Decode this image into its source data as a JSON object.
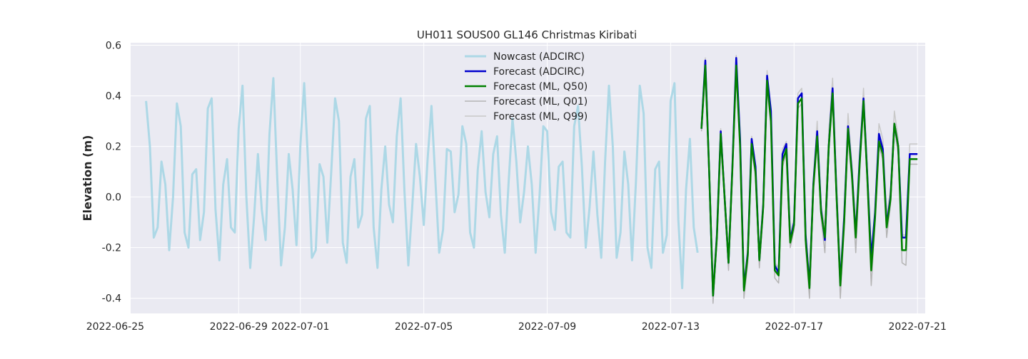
{
  "chart_data": {
    "type": "line",
    "title": "UH011 SOUS00 GL146 Christmas Kiribati",
    "xlabel": "",
    "ylabel": "Elevation (m)",
    "x_axis_type": "date",
    "xlim": [
      "2022-06-25T12:00",
      "2022-07-21T06:00"
    ],
    "ylim": [
      -0.46,
      0.61
    ],
    "x_tick_labels": [
      "2022-06-25",
      "2022-06-29",
      "2022-07-01",
      "2022-07-05",
      "2022-07-09",
      "2022-07-13",
      "2022-07-17",
      "2022-07-21"
    ],
    "y_ticks": [
      -0.4,
      -0.2,
      0.0,
      0.2,
      0.4,
      0.6
    ],
    "y_tick_labels": [
      "-0.4",
      "-0.2",
      "0.0",
      "0.2",
      "0.4",
      "0.6"
    ],
    "grid": true,
    "legend_position": "top-center",
    "background_color": "#eaeaf2",
    "series": [
      {
        "name": "Nowcast (ADCIRC)",
        "color": "#add8e6",
        "x": [
          "2022-06-26T00:00",
          "2022-06-26T03:00",
          "2022-06-26T06:00",
          "2022-06-26T09:00",
          "2022-06-26T12:00",
          "2022-06-26T15:00",
          "2022-06-26T18:00",
          "2022-06-26T21:00",
          "2022-06-27T00:00",
          "2022-06-27T03:00",
          "2022-06-27T06:00",
          "2022-06-27T09:00",
          "2022-06-27T12:00",
          "2022-06-27T15:00",
          "2022-06-27T18:00",
          "2022-06-27T21:00",
          "2022-06-28T00:00",
          "2022-06-28T03:00",
          "2022-06-28T06:00",
          "2022-06-28T09:00",
          "2022-06-28T12:00",
          "2022-06-28T15:00",
          "2022-06-28T18:00",
          "2022-06-28T21:00",
          "2022-06-29T00:00",
          "2022-06-29T03:00",
          "2022-06-29T06:00",
          "2022-06-29T09:00",
          "2022-06-29T12:00",
          "2022-06-29T15:00",
          "2022-06-29T18:00",
          "2022-06-29T21:00",
          "2022-06-30T00:00",
          "2022-06-30T03:00",
          "2022-06-30T06:00",
          "2022-06-30T09:00",
          "2022-06-30T12:00",
          "2022-06-30T15:00",
          "2022-06-30T18:00",
          "2022-06-30T21:00",
          "2022-07-01T00:00",
          "2022-07-01T03:00",
          "2022-07-01T06:00",
          "2022-07-01T09:00",
          "2022-07-01T12:00",
          "2022-07-01T15:00",
          "2022-07-01T18:00",
          "2022-07-01T21:00",
          "2022-07-02T00:00",
          "2022-07-02T03:00",
          "2022-07-02T06:00",
          "2022-07-02T09:00",
          "2022-07-02T12:00",
          "2022-07-02T15:00",
          "2022-07-02T18:00",
          "2022-07-02T21:00",
          "2022-07-03T00:00",
          "2022-07-03T03:00",
          "2022-07-03T06:00",
          "2022-07-03T09:00",
          "2022-07-03T12:00",
          "2022-07-03T15:00",
          "2022-07-03T18:00",
          "2022-07-03T21:00",
          "2022-07-04T00:00",
          "2022-07-04T03:00",
          "2022-07-04T06:00",
          "2022-07-04T09:00",
          "2022-07-04T12:00",
          "2022-07-04T15:00",
          "2022-07-04T18:00",
          "2022-07-04T21:00",
          "2022-07-05T00:00",
          "2022-07-05T03:00",
          "2022-07-05T06:00",
          "2022-07-05T09:00",
          "2022-07-05T12:00",
          "2022-07-05T15:00",
          "2022-07-05T18:00",
          "2022-07-05T21:00",
          "2022-07-06T00:00",
          "2022-07-06T03:00",
          "2022-07-06T06:00",
          "2022-07-06T09:00",
          "2022-07-06T12:00",
          "2022-07-06T15:00",
          "2022-07-06T18:00",
          "2022-07-06T21:00",
          "2022-07-07T00:00",
          "2022-07-07T03:00",
          "2022-07-07T06:00",
          "2022-07-07T09:00",
          "2022-07-07T12:00",
          "2022-07-07T15:00",
          "2022-07-07T18:00",
          "2022-07-07T21:00",
          "2022-07-08T00:00",
          "2022-07-08T03:00",
          "2022-07-08T06:00",
          "2022-07-08T09:00",
          "2022-07-08T12:00",
          "2022-07-08T15:00",
          "2022-07-08T18:00",
          "2022-07-08T21:00",
          "2022-07-09T00:00",
          "2022-07-09T03:00",
          "2022-07-09T06:00",
          "2022-07-09T09:00",
          "2022-07-09T12:00",
          "2022-07-09T15:00",
          "2022-07-09T18:00",
          "2022-07-09T21:00",
          "2022-07-10T00:00",
          "2022-07-10T03:00",
          "2022-07-10T06:00",
          "2022-07-10T09:00",
          "2022-07-10T12:00",
          "2022-07-10T15:00",
          "2022-07-10T18:00",
          "2022-07-10T21:00",
          "2022-07-11T00:00",
          "2022-07-11T03:00",
          "2022-07-11T06:00",
          "2022-07-11T09:00",
          "2022-07-11T12:00",
          "2022-07-11T15:00",
          "2022-07-11T18:00",
          "2022-07-11T21:00",
          "2022-07-12T00:00",
          "2022-07-12T03:00",
          "2022-07-12T06:00",
          "2022-07-12T09:00",
          "2022-07-12T12:00",
          "2022-07-12T15:00",
          "2022-07-12T18:00",
          "2022-07-12T21:00",
          "2022-07-13T00:00",
          "2022-07-13T03:00",
          "2022-07-13T06:00",
          "2022-07-13T09:00",
          "2022-07-13T12:00",
          "2022-07-13T15:00",
          "2022-07-13T18:00",
          "2022-07-13T21:00"
        ],
        "y": [
          0.38,
          0.2,
          -0.16,
          -0.12,
          0.14,
          0.05,
          -0.21,
          0.0,
          0.37,
          0.28,
          -0.14,
          -0.2,
          0.09,
          0.11,
          -0.17,
          -0.06,
          0.35,
          0.39,
          -0.05,
          -0.25,
          0.05,
          0.15,
          -0.12,
          -0.14,
          0.27,
          0.44,
          0.0,
          -0.28,
          -0.08,
          0.17,
          -0.05,
          -0.17,
          0.25,
          0.47,
          0.08,
          -0.27,
          -0.12,
          0.17,
          0.03,
          -0.19,
          0.2,
          0.45,
          0.14,
          -0.24,
          -0.21,
          0.13,
          0.08,
          -0.18,
          0.1,
          0.39,
          0.3,
          -0.18,
          -0.26,
          0.08,
          0.15,
          -0.12,
          -0.07,
          0.31,
          0.36,
          -0.12,
          -0.28,
          0.03,
          0.2,
          -0.03,
          -0.1,
          0.24,
          0.39,
          0.02,
          -0.27,
          -0.04,
          0.21,
          0.08,
          -0.11,
          0.15,
          0.36,
          0.07,
          -0.22,
          -0.13,
          0.19,
          0.18,
          -0.06,
          0.01,
          0.28,
          0.21,
          -0.14,
          -0.2,
          0.11,
          0.26,
          0.02,
          -0.08,
          0.17,
          0.24,
          -0.07,
          -0.22,
          0.06,
          0.31,
          0.14,
          -0.1,
          0.02,
          0.2,
          0.05,
          -0.22,
          0.0,
          0.28,
          0.26,
          -0.06,
          -0.13,
          0.12,
          0.14,
          -0.14,
          -0.16,
          0.28,
          0.36,
          0.12,
          -0.2,
          -0.04,
          0.18,
          -0.07,
          -0.24,
          0.14,
          0.44,
          0.2,
          -0.24,
          -0.14,
          0.18,
          0.05,
          -0.25,
          0.06,
          0.44,
          0.33,
          -0.2,
          -0.28,
          0.11,
          0.14,
          -0.22,
          -0.15,
          0.38,
          0.45,
          -0.09,
          -0.36,
          0.03,
          0.23,
          -0.12,
          -0.22
        ]
      },
      {
        "name": "Forecast (ADCIRC)",
        "color": "#0000cd",
        "x": [
          "2022-07-14T00:00",
          "2022-07-14T03:00",
          "2022-07-14T06:00",
          "2022-07-14T09:00",
          "2022-07-14T12:00",
          "2022-07-14T15:00",
          "2022-07-14T18:00",
          "2022-07-14T21:00",
          "2022-07-15T00:00",
          "2022-07-15T03:00",
          "2022-07-15T06:00",
          "2022-07-15T09:00",
          "2022-07-15T12:00",
          "2022-07-15T15:00",
          "2022-07-15T18:00",
          "2022-07-15T21:00",
          "2022-07-16T00:00",
          "2022-07-16T03:00",
          "2022-07-16T06:00",
          "2022-07-16T09:00",
          "2022-07-16T12:00",
          "2022-07-16T15:00",
          "2022-07-16T18:00",
          "2022-07-16T21:00",
          "2022-07-17T00:00",
          "2022-07-17T03:00",
          "2022-07-17T06:00",
          "2022-07-17T09:00",
          "2022-07-17T12:00",
          "2022-07-17T15:00",
          "2022-07-17T18:00",
          "2022-07-17T21:00",
          "2022-07-18T00:00",
          "2022-07-18T03:00",
          "2022-07-18T06:00",
          "2022-07-18T09:00",
          "2022-07-18T12:00",
          "2022-07-18T15:00",
          "2022-07-18T18:00",
          "2022-07-18T21:00",
          "2022-07-19T00:00",
          "2022-07-19T03:00",
          "2022-07-19T06:00",
          "2022-07-19T09:00",
          "2022-07-19T12:00",
          "2022-07-19T15:00",
          "2022-07-19T18:00",
          "2022-07-19T21:00",
          "2022-07-20T00:00",
          "2022-07-20T03:00",
          "2022-07-20T06:00",
          "2022-07-20T09:00",
          "2022-07-20T12:00",
          "2022-07-20T15:00",
          "2022-07-20T18:00",
          "2022-07-20T21:00",
          "2022-07-21T00:00"
        ],
        "y": [
          0.27,
          0.54,
          0.1,
          -0.39,
          -0.15,
          0.26,
          0.0,
          -0.26,
          0.12,
          0.55,
          0.23,
          -0.36,
          -0.22,
          0.23,
          0.12,
          -0.25,
          -0.03,
          0.48,
          0.34,
          -0.27,
          -0.3,
          0.17,
          0.21,
          -0.17,
          -0.1,
          0.39,
          0.41,
          -0.15,
          -0.35,
          0.05,
          0.26,
          -0.05,
          -0.17,
          0.2,
          0.43,
          0.02,
          -0.34,
          -0.08,
          0.28,
          0.1,
          -0.15,
          0.15,
          0.39,
          0.08,
          -0.24,
          -0.06,
          0.25,
          0.19,
          -0.11,
          0.0,
          0.29,
          0.2,
          -0.16,
          -0.16,
          0.17,
          0.17,
          0.17
        ]
      },
      {
        "name": "Forecast (ML, Q50)",
        "color": "#008000",
        "x": [
          "2022-07-14T00:00",
          "2022-07-14T03:00",
          "2022-07-14T06:00",
          "2022-07-14T09:00",
          "2022-07-14T12:00",
          "2022-07-14T15:00",
          "2022-07-14T18:00",
          "2022-07-14T21:00",
          "2022-07-15T00:00",
          "2022-07-15T03:00",
          "2022-07-15T06:00",
          "2022-07-15T09:00",
          "2022-07-15T12:00",
          "2022-07-15T15:00",
          "2022-07-15T18:00",
          "2022-07-15T21:00",
          "2022-07-16T00:00",
          "2022-07-16T03:00",
          "2022-07-16T06:00",
          "2022-07-16T09:00",
          "2022-07-16T12:00",
          "2022-07-16T15:00",
          "2022-07-16T18:00",
          "2022-07-16T21:00",
          "2022-07-17T00:00",
          "2022-07-17T03:00",
          "2022-07-17T06:00",
          "2022-07-17T09:00",
          "2022-07-17T12:00",
          "2022-07-17T15:00",
          "2022-07-17T18:00",
          "2022-07-17T21:00",
          "2022-07-18T00:00",
          "2022-07-18T03:00",
          "2022-07-18T06:00",
          "2022-07-18T09:00",
          "2022-07-18T12:00",
          "2022-07-18T15:00",
          "2022-07-18T18:00",
          "2022-07-18T21:00",
          "2022-07-19T00:00",
          "2022-07-19T03:00",
          "2022-07-19T06:00",
          "2022-07-19T09:00",
          "2022-07-19T12:00",
          "2022-07-19T15:00",
          "2022-07-19T18:00",
          "2022-07-19T21:00",
          "2022-07-20T00:00",
          "2022-07-20T03:00",
          "2022-07-20T06:00",
          "2022-07-20T09:00",
          "2022-07-20T12:00",
          "2022-07-20T15:00",
          "2022-07-20T18:00",
          "2022-07-20T21:00",
          "2022-07-21T00:00"
        ],
        "y": [
          0.27,
          0.52,
          0.1,
          -0.39,
          -0.16,
          0.25,
          0.0,
          -0.26,
          0.11,
          0.52,
          0.2,
          -0.37,
          -0.23,
          0.21,
          0.1,
          -0.25,
          -0.04,
          0.46,
          0.3,
          -0.29,
          -0.31,
          0.14,
          0.19,
          -0.18,
          -0.11,
          0.37,
          0.39,
          -0.17,
          -0.36,
          0.04,
          0.24,
          -0.06,
          -0.16,
          0.2,
          0.41,
          0.01,
          -0.35,
          -0.1,
          0.27,
          0.09,
          -0.16,
          0.13,
          0.38,
          0.07,
          -0.29,
          -0.08,
          0.22,
          0.17,
          -0.12,
          -0.01,
          0.29,
          0.2,
          -0.21,
          -0.21,
          0.15,
          0.15,
          0.15
        ]
      },
      {
        "name": "Forecast (ML, Q01)",
        "color": "#b4b4b4",
        "x": [
          "2022-07-14T00:00",
          "2022-07-14T03:00",
          "2022-07-14T06:00",
          "2022-07-14T09:00",
          "2022-07-14T12:00",
          "2022-07-14T15:00",
          "2022-07-14T18:00",
          "2022-07-14T21:00",
          "2022-07-15T00:00",
          "2022-07-15T03:00",
          "2022-07-15T06:00",
          "2022-07-15T09:00",
          "2022-07-15T12:00",
          "2022-07-15T15:00",
          "2022-07-15T18:00",
          "2022-07-15T21:00",
          "2022-07-16T00:00",
          "2022-07-16T03:00",
          "2022-07-16T06:00",
          "2022-07-16T09:00",
          "2022-07-16T12:00",
          "2022-07-16T15:00",
          "2022-07-16T18:00",
          "2022-07-16T21:00",
          "2022-07-17T00:00",
          "2022-07-17T03:00",
          "2022-07-17T06:00",
          "2022-07-17T09:00",
          "2022-07-17T12:00",
          "2022-07-17T15:00",
          "2022-07-17T18:00",
          "2022-07-17T21:00",
          "2022-07-18T00:00",
          "2022-07-18T03:00",
          "2022-07-18T06:00",
          "2022-07-18T09:00",
          "2022-07-18T12:00",
          "2022-07-18T15:00",
          "2022-07-18T18:00",
          "2022-07-18T21:00",
          "2022-07-19T00:00",
          "2022-07-19T03:00",
          "2022-07-19T06:00",
          "2022-07-19T09:00",
          "2022-07-19T12:00",
          "2022-07-19T15:00",
          "2022-07-19T18:00",
          "2022-07-19T21:00",
          "2022-07-20T00:00",
          "2022-07-20T03:00",
          "2022-07-20T06:00",
          "2022-07-20T09:00",
          "2022-07-20T12:00",
          "2022-07-20T15:00",
          "2022-07-20T18:00",
          "2022-07-20T21:00",
          "2022-07-21T00:00"
        ],
        "y": [
          0.26,
          0.48,
          0.08,
          -0.42,
          -0.18,
          0.22,
          -0.03,
          -0.29,
          0.09,
          0.49,
          0.18,
          -0.4,
          -0.26,
          0.19,
          0.08,
          -0.28,
          -0.06,
          0.43,
          0.28,
          -0.32,
          -0.34,
          0.12,
          0.17,
          -0.2,
          -0.13,
          0.35,
          0.37,
          -0.2,
          -0.4,
          0.01,
          0.22,
          -0.08,
          -0.22,
          0.17,
          0.39,
          -0.02,
          -0.4,
          -0.13,
          0.24,
          0.06,
          -0.22,
          0.1,
          0.36,
          0.04,
          -0.35,
          -0.1,
          0.2,
          0.15,
          -0.16,
          -0.03,
          0.27,
          0.17,
          -0.26,
          -0.27,
          0.13,
          0.13,
          0.13
        ]
      },
      {
        "name": "Forecast (ML, Q99)",
        "color": "#c8c8c8",
        "x": [
          "2022-07-14T00:00",
          "2022-07-14T03:00",
          "2022-07-14T06:00",
          "2022-07-14T09:00",
          "2022-07-14T12:00",
          "2022-07-14T15:00",
          "2022-07-14T18:00",
          "2022-07-14T21:00",
          "2022-07-15T00:00",
          "2022-07-15T03:00",
          "2022-07-15T06:00",
          "2022-07-15T09:00",
          "2022-07-15T12:00",
          "2022-07-15T15:00",
          "2022-07-15T18:00",
          "2022-07-15T21:00",
          "2022-07-16T00:00",
          "2022-07-16T03:00",
          "2022-07-16T06:00",
          "2022-07-16T09:00",
          "2022-07-16T12:00",
          "2022-07-16T15:00",
          "2022-07-16T18:00",
          "2022-07-16T21:00",
          "2022-07-17T00:00",
          "2022-07-17T03:00",
          "2022-07-17T06:00",
          "2022-07-17T09:00",
          "2022-07-17T12:00",
          "2022-07-17T15:00",
          "2022-07-17T18:00",
          "2022-07-17T21:00",
          "2022-07-18T00:00",
          "2022-07-18T03:00",
          "2022-07-18T06:00",
          "2022-07-18T09:00",
          "2022-07-18T12:00",
          "2022-07-18T15:00",
          "2022-07-18T18:00",
          "2022-07-18T21:00",
          "2022-07-19T00:00",
          "2022-07-19T03:00",
          "2022-07-19T06:00",
          "2022-07-19T09:00",
          "2022-07-19T12:00",
          "2022-07-19T15:00",
          "2022-07-19T18:00",
          "2022-07-19T21:00",
          "2022-07-20T00:00",
          "2022-07-20T03:00",
          "2022-07-20T06:00",
          "2022-07-20T09:00",
          "2022-07-20T12:00",
          "2022-07-20T15:00",
          "2022-07-20T18:00",
          "2022-07-20T21:00",
          "2022-07-21T00:00"
        ],
        "y": [
          0.28,
          0.55,
          0.12,
          -0.36,
          -0.13,
          0.27,
          0.02,
          -0.23,
          0.13,
          0.56,
          0.24,
          -0.34,
          -0.2,
          0.24,
          0.13,
          -0.22,
          -0.01,
          0.5,
          0.35,
          -0.26,
          -0.28,
          0.19,
          0.22,
          -0.15,
          -0.08,
          0.41,
          0.43,
          -0.14,
          -0.32,
          0.07,
          0.3,
          -0.03,
          -0.12,
          0.26,
          0.47,
          0.06,
          -0.3,
          -0.05,
          0.33,
          0.13,
          -0.12,
          0.18,
          0.43,
          0.11,
          -0.26,
          -0.04,
          0.29,
          0.23,
          -0.07,
          0.03,
          0.34,
          0.23,
          -0.15,
          -0.15,
          0.21,
          0.21,
          0.21
        ]
      }
    ]
  }
}
